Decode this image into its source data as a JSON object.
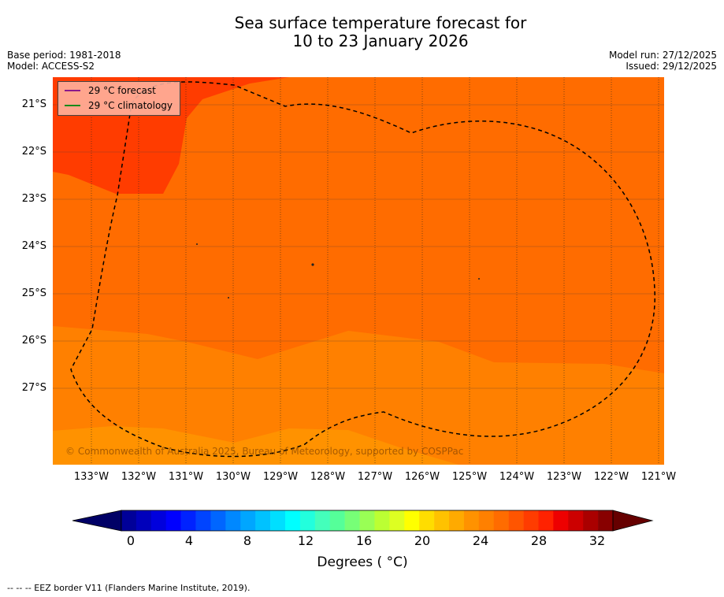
{
  "title": {
    "line1": "Sea surface temperature forecast for",
    "line2": "10 to 23 January 2026"
  },
  "meta": {
    "base_period": "Base period: 1981-2018",
    "model": "Model: ACCESS-S2",
    "model_run": "Model run: 27/12/2025",
    "issued": "Issued: 29/12/2025"
  },
  "map": {
    "lat_labels": [
      "21°S",
      "22°S",
      "23°S",
      "24°S",
      "25°S",
      "26°S",
      "27°S"
    ],
    "lon_labels": [
      "133°W",
      "132°W",
      "131°W",
      "130°W",
      "129°W",
      "128°W",
      "127°W",
      "126°W",
      "125°W",
      "124°W",
      "123°W",
      "122°W",
      "121°W"
    ],
    "colors": {
      "band_26_27": "#ff8000",
      "band_27_28": "#ff6c00",
      "band_28_29": "#ff5500",
      "band_29_30": "#ff3c00",
      "lowest_band": "#ff9200"
    },
    "copyright": "© Commonwealth of Australia 2025, Bureau of Meteorology, supported by COSPPac"
  },
  "legend": {
    "forecast": "29 °C  forecast",
    "climatology": "29 °C  climatology",
    "forecast_color": "#8b1a8b",
    "climatology_color": "#1a8a1a"
  },
  "colorbar": {
    "ticks": [
      "0",
      "4",
      "8",
      "12",
      "16",
      "20",
      "24",
      "28",
      "32"
    ],
    "title": "Degrees ( °C)",
    "colors": [
      "#000099",
      "#0000bb",
      "#0000dd",
      "#0000ff",
      "#0022ff",
      "#0044ff",
      "#0066ff",
      "#0088ff",
      "#00a6ff",
      "#00c2ff",
      "#00dfff",
      "#00ffff",
      "#22ffdd",
      "#44ffbb",
      "#55ff99",
      "#77ff77",
      "#99ff55",
      "#bbff33",
      "#ddff22",
      "#ffff00",
      "#ffdd00",
      "#ffc200",
      "#ffaa00",
      "#ff9200",
      "#ff8000",
      "#ff6c00",
      "#ff5500",
      "#ff3c00",
      "#ff2200",
      "#ee0000",
      "#cc0000",
      "#aa0000",
      "#880000"
    ]
  },
  "footnote": "--  --  -- EEZ border V11 (Flanders Marine Institute, 2019)."
}
